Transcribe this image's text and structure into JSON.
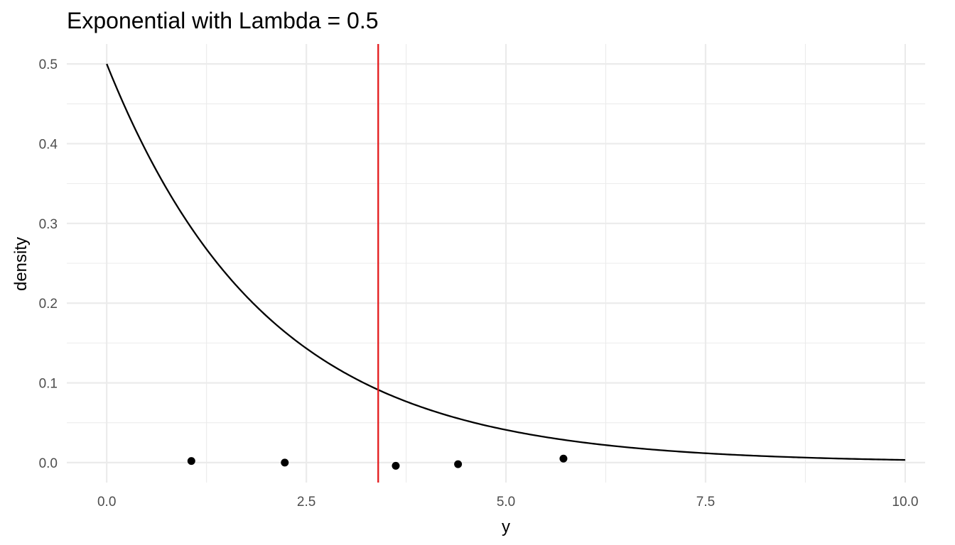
{
  "chart_data": {
    "type": "line",
    "title": "Exponential with Lambda = 0.5",
    "xlabel": "y",
    "ylabel": "density",
    "xlim": [
      -0.5,
      10.25
    ],
    "ylim": [
      -0.025,
      0.525
    ],
    "x_ticks": [
      0,
      2.5,
      5,
      7.5,
      10
    ],
    "x_tick_labels": [
      "0.0",
      "2.5",
      "5.0",
      "7.5",
      "10.0"
    ],
    "y_ticks": [
      0,
      0.1,
      0.2,
      0.3,
      0.4,
      0.5
    ],
    "y_tick_labels": [
      "0.0",
      "0.1",
      "0.2",
      "0.3",
      "0.4",
      "0.5"
    ],
    "x_minor_ticks": [
      1.25,
      3.75,
      6.25,
      8.75
    ],
    "y_minor_ticks": [
      0.05,
      0.15,
      0.25,
      0.35,
      0.45
    ],
    "grid": true,
    "legend": "none",
    "series": [
      {
        "type": "line",
        "function": "exponential density",
        "lambda": 0.5,
        "x_range": [
          0,
          10
        ],
        "color": "#000000"
      },
      {
        "type": "scatter",
        "color": "#000000",
        "points": [
          {
            "x": 1.06,
            "y": 0.002
          },
          {
            "x": 2.23,
            "y": 0.0
          },
          {
            "x": 3.62,
            "y": -0.004
          },
          {
            "x": 4.4,
            "y": -0.002
          },
          {
            "x": 5.72,
            "y": 0.005
          }
        ]
      },
      {
        "type": "vline",
        "x": 3.4,
        "color": "#e31a1c"
      }
    ]
  }
}
